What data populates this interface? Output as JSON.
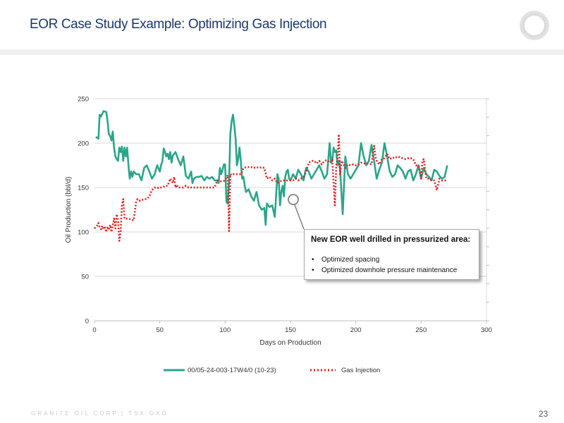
{
  "page": {
    "title": "EOR Case Study Example: Optimizing Gas Injection",
    "footer_company": "GRANITE OIL CORP.| TSX:GXO",
    "page_number": "23",
    "colors": {
      "title": "#1b3a6b",
      "oil_series": "#2aa58a",
      "gas_series": "#e02020",
      "header_rule": "#f0f0f0"
    },
    "logo_icon": "granite-ring-logo-icon"
  },
  "callout": {
    "title": "New EOR well drilled in pressurized area:",
    "bullets": [
      "Optimized spacing",
      "Optimized downhole pressure maintenance"
    ],
    "bullet_glyph": "•"
  },
  "chart_data": {
    "type": "line",
    "xlabel": "Days on Production",
    "ylabel": "Oil Production (bbl/d)",
    "xlim": [
      0,
      300
    ],
    "ylim": [
      0,
      250
    ],
    "x_ticks": [
      "0",
      "50",
      "100",
      "150",
      "200",
      "250",
      "300"
    ],
    "y_ticks": [
      "0",
      "50",
      "100",
      "150",
      "200",
      "250"
    ],
    "grid": "horizontal",
    "legend_position": "bottom",
    "series": [
      {
        "name": "00/05-24-003-17W4/0 (10-23)",
        "style": "solid",
        "x": [
          1,
          3,
          4,
          5,
          6,
          7,
          9,
          10,
          11,
          12,
          13,
          14,
          15,
          16,
          17,
          18,
          19,
          20,
          21,
          22,
          23,
          24,
          25,
          26,
          27,
          28,
          29,
          30,
          32,
          34,
          36,
          38,
          40,
          42,
          44,
          46,
          48,
          50,
          51,
          52,
          53,
          54,
          55,
          56,
          57,
          58,
          59,
          60,
          62,
          64,
          66,
          68,
          70,
          72,
          74,
          75,
          76,
          78,
          80,
          82,
          84,
          86,
          88,
          90,
          92,
          94,
          95,
          96,
          97,
          98,
          99,
          100,
          101,
          102,
          103,
          104,
          105,
          106,
          107,
          108,
          109,
          110,
          111,
          112,
          113,
          114,
          115,
          116,
          118,
          120,
          122,
          124,
          126,
          128,
          130,
          131,
          132,
          134,
          136,
          138,
          140,
          141,
          142,
          143,
          144,
          145,
          146,
          147,
          148,
          149,
          150,
          152,
          154,
          156,
          158,
          160,
          162,
          164,
          166,
          168,
          170,
          172,
          174,
          176,
          178,
          180,
          181,
          182,
          183,
          184,
          185,
          186,
          187,
          188,
          190,
          192,
          194,
          196,
          198,
          200,
          202,
          204,
          206,
          208,
          210,
          212,
          214,
          216,
          218,
          220,
          222,
          224,
          226,
          228,
          230,
          232,
          234,
          236,
          238,
          240,
          242,
          244,
          246,
          248,
          250,
          252,
          254,
          256,
          258,
          260,
          262,
          264,
          266,
          268,
          270
        ],
        "y": [
          207,
          205,
          232,
          230,
          233,
          236,
          235,
          225,
          210,
          208,
          203,
          213,
          195,
          185,
          182,
          180,
          195,
          190,
          196,
          180,
          195,
          185,
          195,
          175,
          160,
          168,
          162,
          168,
          165,
          165,
          158,
          172,
          175,
          168,
          160,
          165,
          175,
          168,
          175,
          180,
          194,
          190,
          185,
          188,
          182,
          190,
          178,
          186,
          190,
          182,
          175,
          185,
          163,
          160,
          168,
          155,
          160,
          162,
          162,
          163,
          158,
          162,
          160,
          162,
          158,
          158,
          155,
          172,
          165,
          170,
          176,
          176,
          134,
          132,
          158,
          210,
          225,
          232,
          220,
          205,
          175,
          182,
          195,
          180,
          160,
          162,
          152,
          145,
          148,
          140,
          135,
          145,
          130,
          125,
          127,
          108,
          132,
          128,
          130,
          117,
          165,
          160,
          130,
          145,
          152,
          140,
          162,
          168,
          170,
          160,
          158,
          165,
          160,
          170,
          165,
          158,
          172,
          168,
          160,
          165,
          170,
          175,
          168,
          160,
          165,
          200,
          178,
          180,
          195,
          190,
          192,
          175,
          180,
          170,
          120,
          185,
          165,
          160,
          165,
          170,
          175,
          200,
          185,
          175,
          180,
          198,
          180,
          160,
          170,
          178,
          200,
          185,
          168,
          162,
          165,
          175,
          172,
          168,
          160,
          168,
          170,
          158,
          165,
          175,
          160,
          172,
          165,
          162,
          158,
          170,
          168,
          163,
          160,
          162,
          175
        ]
      },
      {
        "name": "Gas Injection",
        "style": "dotted",
        "x": [
          0,
          2,
          3,
          4,
          5,
          6,
          7,
          8,
          9,
          10,
          11,
          12,
          13,
          14,
          15,
          16,
          17,
          18,
          19,
          20,
          21,
          22,
          23,
          24,
          25,
          26,
          30,
          32,
          33,
          35,
          38,
          40,
          42,
          44,
          46,
          48,
          49,
          50,
          52,
          54,
          56,
          58,
          60,
          61,
          62,
          63,
          64,
          66,
          68,
          70,
          72,
          74,
          76,
          78,
          80,
          84,
          86,
          88,
          90,
          92,
          94,
          96,
          98,
          100,
          102,
          103,
          104,
          105,
          106,
          108,
          110,
          112,
          114,
          116,
          118,
          120,
          122,
          124,
          126,
          128,
          130,
          132,
          134,
          136,
          138,
          140,
          142,
          144,
          146,
          148,
          150,
          152,
          154,
          156,
          158,
          160,
          162,
          164,
          166,
          168,
          170,
          172,
          174,
          176,
          178,
          180,
          182,
          184,
          185,
          186,
          187,
          188,
          189,
          190,
          192,
          194,
          196,
          198,
          200,
          202,
          204,
          206,
          208,
          210,
          212,
          214,
          215,
          216,
          218,
          220,
          222,
          224,
          226,
          228,
          230,
          232,
          234,
          236,
          238,
          240,
          242,
          244,
          246,
          248,
          250,
          251,
          252,
          254,
          256,
          258,
          260,
          262,
          264,
          266,
          268,
          270
        ],
        "y": [
          104,
          107,
          110,
          105,
          103,
          107,
          103,
          105,
          100,
          106,
          102,
          108,
          100,
          107,
          115,
          104,
          120,
          113,
          90,
          100,
          130,
          137,
          115,
          115,
          115,
          115,
          113,
          135,
          137,
          135,
          137,
          137,
          140,
          147,
          150,
          149,
          150,
          150,
          150,
          152,
          152,
          160,
          155,
          162,
          150,
          153,
          150,
          150,
          150,
          152,
          150,
          150,
          150,
          150,
          150,
          150,
          150,
          150,
          150,
          150,
          158,
          157,
          157,
          158,
          164,
          101,
          165,
          164,
          165,
          165,
          165,
          165,
          172,
          173,
          173,
          173,
          172,
          173,
          172,
          173,
          172,
          160,
          162,
          158,
          160,
          155,
          157,
          158,
          158,
          158,
          158,
          158,
          160,
          158,
          160,
          162,
          168,
          178,
          180,
          180,
          177,
          180,
          176,
          180,
          181,
          178,
          181,
          130,
          175,
          182,
          210,
          165,
          180,
          178,
          172,
          176,
          175,
          176,
          175,
          176,
          178,
          177,
          177,
          177,
          176,
          197,
          185,
          180,
          176,
          182,
          183,
          188,
          182,
          184,
          183,
          185,
          184,
          183,
          182,
          183,
          183,
          182,
          175,
          175,
          160,
          180,
          182,
          160,
          160,
          158,
          158,
          147,
          160,
          158,
          158,
          158
        ]
      }
    ]
  }
}
